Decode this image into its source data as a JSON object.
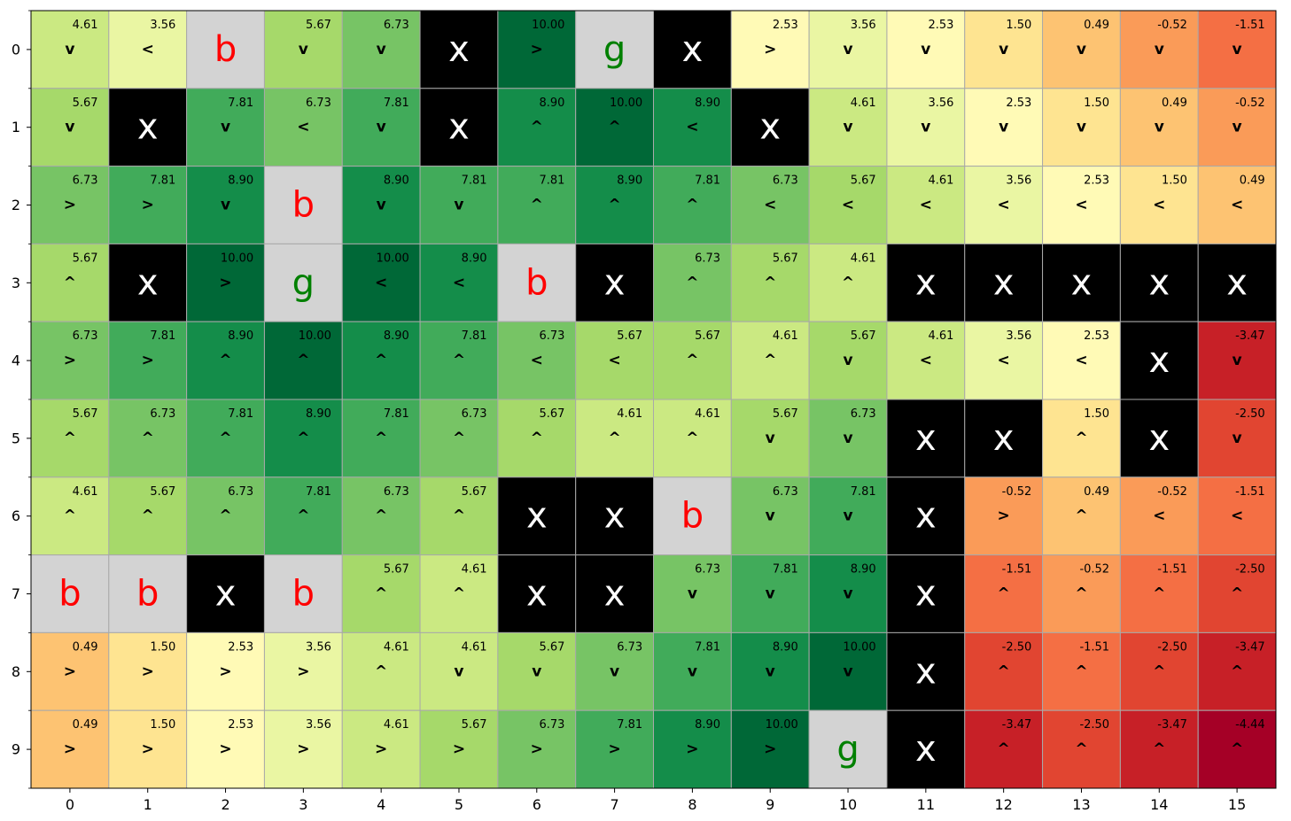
{
  "chart_data": {
    "type": "heatmap",
    "title": "",
    "xlabel": "",
    "ylabel": "",
    "x_ticks": [
      "0",
      "1",
      "2",
      "3",
      "4",
      "5",
      "6",
      "7",
      "8",
      "9",
      "10",
      "11",
      "12",
      "13",
      "14",
      "15"
    ],
    "y_ticks": [
      "0",
      "1",
      "2",
      "3",
      "4",
      "5",
      "6",
      "7",
      "8",
      "9"
    ],
    "grid": true,
    "colormap": "RdYlGn",
    "value_range": [
      -4.44,
      10.0
    ],
    "cell_colors": {
      "wall": "#000000",
      "special": "#d3d3d3",
      "b_text": "#ff0000",
      "g_text": "#008000",
      "x_text": "#ffffff"
    },
    "cells": [
      [
        {
          "v": "4.61",
          "a": "v"
        },
        {
          "v": "3.56",
          "a": "<"
        },
        {
          "t": "b"
        },
        {
          "v": "5.67",
          "a": "v"
        },
        {
          "v": "6.73",
          "a": "v"
        },
        {
          "t": "x"
        },
        {
          "v": "10.00",
          "a": ">"
        },
        {
          "t": "g"
        },
        {
          "t": "x"
        },
        {
          "v": "2.53",
          "a": ">"
        },
        {
          "v": "3.56",
          "a": "v"
        },
        {
          "v": "2.53",
          "a": "v"
        },
        {
          "v": "1.50",
          "a": "v"
        },
        {
          "v": "0.49",
          "a": "v"
        },
        {
          "v": "-0.52",
          "a": "v"
        },
        {
          "v": "-1.51",
          "a": "v"
        }
      ],
      [
        {
          "v": "5.67",
          "a": "v"
        },
        {
          "t": "x"
        },
        {
          "v": "7.81",
          "a": "v"
        },
        {
          "v": "6.73",
          "a": "<"
        },
        {
          "v": "7.81",
          "a": "v"
        },
        {
          "t": "x"
        },
        {
          "v": "8.90",
          "a": "^"
        },
        {
          "v": "10.00",
          "a": "^"
        },
        {
          "v": "8.90",
          "a": "<"
        },
        {
          "t": "x"
        },
        {
          "v": "4.61",
          "a": "v"
        },
        {
          "v": "3.56",
          "a": "v"
        },
        {
          "v": "2.53",
          "a": "v"
        },
        {
          "v": "1.50",
          "a": "v"
        },
        {
          "v": "0.49",
          "a": "v"
        },
        {
          "v": "-0.52",
          "a": "v"
        }
      ],
      [
        {
          "v": "6.73",
          "a": ">"
        },
        {
          "v": "7.81",
          "a": ">"
        },
        {
          "v": "8.90",
          "a": "v"
        },
        {
          "t": "b"
        },
        {
          "v": "8.90",
          "a": "v"
        },
        {
          "v": "7.81",
          "a": "v"
        },
        {
          "v": "7.81",
          "a": "^"
        },
        {
          "v": "8.90",
          "a": "^"
        },
        {
          "v": "7.81",
          "a": "^"
        },
        {
          "v": "6.73",
          "a": "<"
        },
        {
          "v": "5.67",
          "a": "<"
        },
        {
          "v": "4.61",
          "a": "<"
        },
        {
          "v": "3.56",
          "a": "<"
        },
        {
          "v": "2.53",
          "a": "<"
        },
        {
          "v": "1.50",
          "a": "<"
        },
        {
          "v": "0.49",
          "a": "<"
        }
      ],
      [
        {
          "v": "5.67",
          "a": "^"
        },
        {
          "t": "x"
        },
        {
          "v": "10.00",
          "a": ">"
        },
        {
          "t": "g"
        },
        {
          "v": "10.00",
          "a": "<"
        },
        {
          "v": "8.90",
          "a": "<"
        },
        {
          "t": "b"
        },
        {
          "t": "x"
        },
        {
          "v": "6.73",
          "a": "^"
        },
        {
          "v": "5.67",
          "a": "^"
        },
        {
          "v": "4.61",
          "a": "^"
        },
        {
          "t": "x"
        },
        {
          "t": "x"
        },
        {
          "t": "x"
        },
        {
          "t": "x"
        },
        {
          "t": "x"
        }
      ],
      [
        {
          "v": "6.73",
          "a": ">"
        },
        {
          "v": "7.81",
          "a": ">"
        },
        {
          "v": "8.90",
          "a": "^"
        },
        {
          "v": "10.00",
          "a": "^"
        },
        {
          "v": "8.90",
          "a": "^"
        },
        {
          "v": "7.81",
          "a": "^"
        },
        {
          "v": "6.73",
          "a": "<"
        },
        {
          "v": "5.67",
          "a": "<"
        },
        {
          "v": "5.67",
          "a": "^"
        },
        {
          "v": "4.61",
          "a": "^"
        },
        {
          "v": "5.67",
          "a": "v"
        },
        {
          "v": "4.61",
          "a": "<"
        },
        {
          "v": "3.56",
          "a": "<"
        },
        {
          "v": "2.53",
          "a": "<"
        },
        {
          "t": "x"
        },
        {
          "v": "-3.47",
          "a": "v"
        }
      ],
      [
        {
          "v": "5.67",
          "a": "^"
        },
        {
          "v": "6.73",
          "a": "^"
        },
        {
          "v": "7.81",
          "a": "^"
        },
        {
          "v": "8.90",
          "a": "^"
        },
        {
          "v": "7.81",
          "a": "^"
        },
        {
          "v": "6.73",
          "a": "^"
        },
        {
          "v": "5.67",
          "a": "^"
        },
        {
          "v": "4.61",
          "a": "^"
        },
        {
          "v": "4.61",
          "a": "^"
        },
        {
          "v": "5.67",
          "a": "v"
        },
        {
          "v": "6.73",
          "a": "v"
        },
        {
          "t": "x"
        },
        {
          "t": "x"
        },
        {
          "v": "1.50",
          "a": "^"
        },
        {
          "t": "x"
        },
        {
          "v": "-2.50",
          "a": "v"
        }
      ],
      [
        {
          "v": "4.61",
          "a": "^"
        },
        {
          "v": "5.67",
          "a": "^"
        },
        {
          "v": "6.73",
          "a": "^"
        },
        {
          "v": "7.81",
          "a": "^"
        },
        {
          "v": "6.73",
          "a": "^"
        },
        {
          "v": "5.67",
          "a": "^"
        },
        {
          "t": "x"
        },
        {
          "t": "x"
        },
        {
          "t": "b"
        },
        {
          "v": "6.73",
          "a": "v"
        },
        {
          "v": "7.81",
          "a": "v"
        },
        {
          "t": "x"
        },
        {
          "v": "-0.52",
          "a": ">"
        },
        {
          "v": "0.49",
          "a": "^"
        },
        {
          "v": "-0.52",
          "a": "<"
        },
        {
          "v": "-1.51",
          "a": "<"
        }
      ],
      [
        {
          "t": "b"
        },
        {
          "t": "b"
        },
        {
          "t": "x"
        },
        {
          "t": "b"
        },
        {
          "v": "5.67",
          "a": "^"
        },
        {
          "v": "4.61",
          "a": "^"
        },
        {
          "t": "x"
        },
        {
          "t": "x"
        },
        {
          "v": "6.73",
          "a": "v"
        },
        {
          "v": "7.81",
          "a": "v"
        },
        {
          "v": "8.90",
          "a": "v"
        },
        {
          "t": "x"
        },
        {
          "v": "-1.51",
          "a": "^"
        },
        {
          "v": "-0.52",
          "a": "^"
        },
        {
          "v": "-1.51",
          "a": "^"
        },
        {
          "v": "-2.50",
          "a": "^"
        }
      ],
      [
        {
          "v": "0.49",
          "a": ">"
        },
        {
          "v": "1.50",
          "a": ">"
        },
        {
          "v": "2.53",
          "a": ">"
        },
        {
          "v": "3.56",
          "a": ">"
        },
        {
          "v": "4.61",
          "a": "^"
        },
        {
          "v": "4.61",
          "a": "v"
        },
        {
          "v": "5.67",
          "a": "v"
        },
        {
          "v": "6.73",
          "a": "v"
        },
        {
          "v": "7.81",
          "a": "v"
        },
        {
          "v": "8.90",
          "a": "v"
        },
        {
          "v": "10.00",
          "a": "v"
        },
        {
          "t": "x"
        },
        {
          "v": "-2.50",
          "a": "^"
        },
        {
          "v": "-1.51",
          "a": "^"
        },
        {
          "v": "-2.50",
          "a": "^"
        },
        {
          "v": "-3.47",
          "a": "^"
        }
      ],
      [
        {
          "v": "0.49",
          "a": ">"
        },
        {
          "v": "1.50",
          "a": ">"
        },
        {
          "v": "2.53",
          "a": ">"
        },
        {
          "v": "3.56",
          "a": ">"
        },
        {
          "v": "4.61",
          "a": ">"
        },
        {
          "v": "5.67",
          "a": ">"
        },
        {
          "v": "6.73",
          "a": ">"
        },
        {
          "v": "7.81",
          "a": ">"
        },
        {
          "v": "8.90",
          "a": ">"
        },
        {
          "v": "10.00",
          "a": ">"
        },
        {
          "t": "g"
        },
        {
          "t": "x"
        },
        {
          "v": "-3.47",
          "a": "^"
        },
        {
          "v": "-2.50",
          "a": "^"
        },
        {
          "v": "-3.47",
          "a": "^"
        },
        {
          "v": "-4.44",
          "a": "^"
        }
      ]
    ]
  }
}
